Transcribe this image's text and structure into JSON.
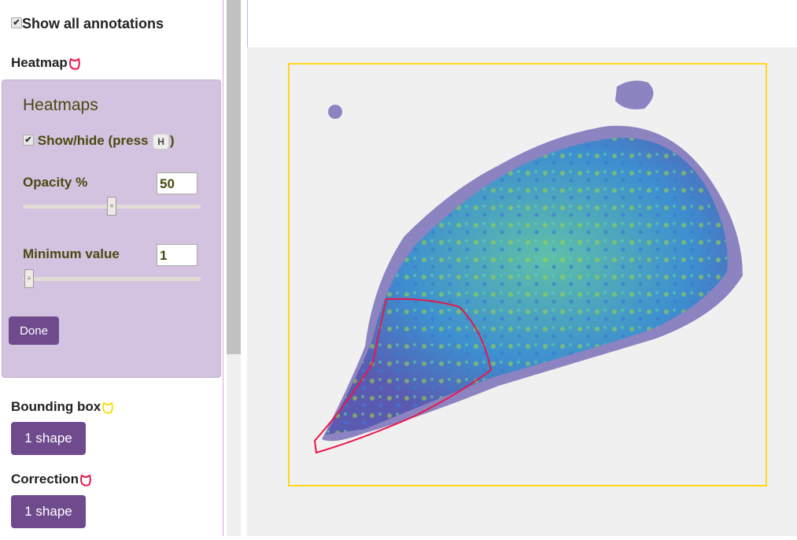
{
  "sidebar": {
    "show_all": {
      "label": "Show all annotations",
      "checked": true
    },
    "heatmap_section": {
      "title": "Heatmap",
      "lasso_color": "#e8174a"
    },
    "panel": {
      "title": "Heatmaps",
      "show_hide": {
        "label": "Show/hide (press",
        "key": "H",
        "close": ")",
        "checked": true
      },
      "opacity": {
        "label": "Opacity %",
        "value": "50",
        "slider_percent": 50
      },
      "minimum": {
        "label": "Minimum value",
        "value": "1",
        "slider_percent": 0
      },
      "done_label": "Done"
    },
    "bounding_box": {
      "title": "Bounding box",
      "lasso_color": "#f5e11a",
      "button": "1 shape"
    },
    "correction": {
      "title": "Correction",
      "lasso_color": "#e8174a",
      "button": "1 shape"
    }
  },
  "viewer": {
    "bbox_color": "#ffd71a",
    "correction_color": "#e8174a"
  }
}
